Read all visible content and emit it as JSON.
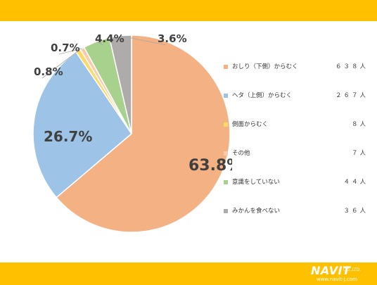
{
  "theme": {
    "band_color": "#FFC000",
    "label_color": "#404040",
    "leader_color": "#A6A6A6"
  },
  "chart_data": {
    "type": "pie",
    "title": "",
    "start_angle_deg": 0,
    "direction": "clockwise",
    "slices": [
      {
        "name": "おしり（下側）からむく",
        "count": "６３８人",
        "value": 63.8,
        "label": "63.8%",
        "color": "#F4B183"
      },
      {
        "name": "ヘタ（上側）からむく",
        "count": "２６７人",
        "value": 26.7,
        "label": "26.7%",
        "color": "#9DC3E6"
      },
      {
        "name": "側面からむく",
        "count": "８人",
        "value": 0.8,
        "label": "0.8%",
        "color": "#FFD966"
      },
      {
        "name": "その他",
        "count": "７人",
        "value": 0.7,
        "label": "0.7%",
        "color": "#F8CBAD"
      },
      {
        "name": "意識をしていない",
        "count": "４４人",
        "value": 4.4,
        "label": "4.4%",
        "color": "#A9D18E"
      },
      {
        "name": "みかんを食べない",
        "count": "３６人",
        "value": 3.6,
        "label": "3.6%",
        "color": "#AFABAB"
      }
    ],
    "legend_position": "right"
  },
  "footer": {
    "logo_text": "NAVIT",
    "logo_sub": "CO.,LTD.",
    "logo_url": "www.navit-j.com"
  }
}
